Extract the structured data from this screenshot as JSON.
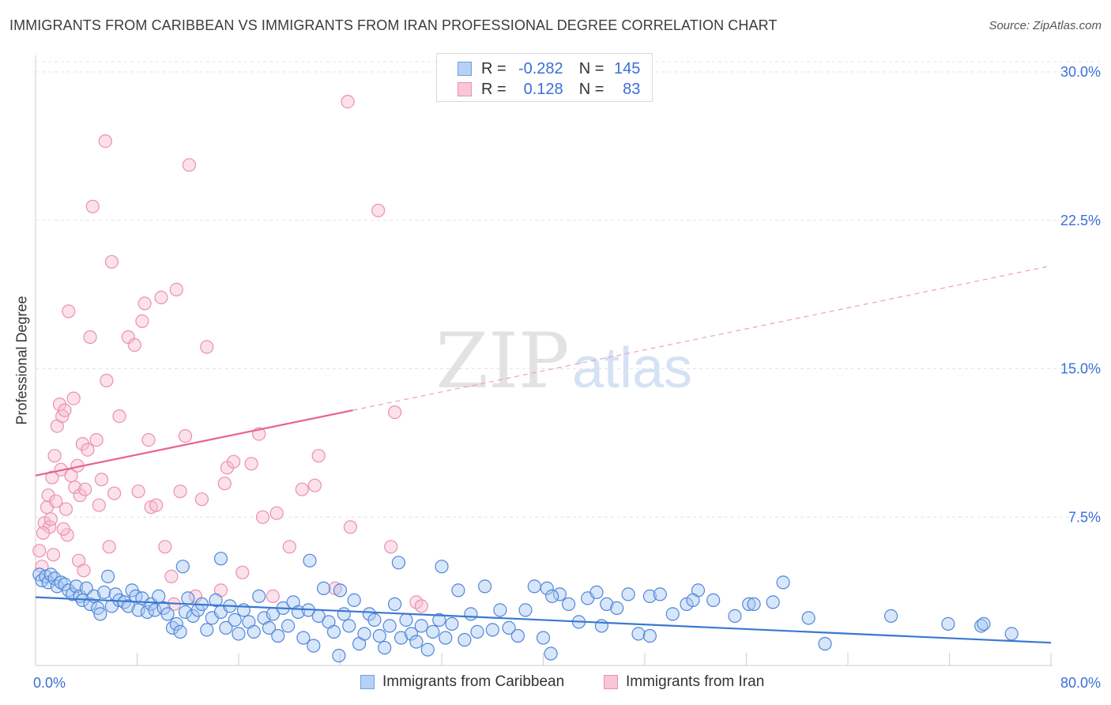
{
  "header": {
    "title": "IMMIGRANTS FROM CARIBBEAN VS IMMIGRANTS FROM IRAN PROFESSIONAL DEGREE CORRELATION CHART",
    "source": "Source: ZipAtlas.com"
  },
  "watermark": {
    "zip": "ZIP",
    "atlas": "atlas"
  },
  "legend": {
    "rows": [
      {
        "r_label": "R =",
        "r_value": "-0.282",
        "n_label": "N =",
        "n_value": "145",
        "swatch_fill": "#b7d0f5",
        "swatch_stroke": "#6f9ee6"
      },
      {
        "r_label": "R =",
        "r_value": "0.128",
        "n_label": "N =",
        "n_value": "83",
        "swatch_fill": "#f9c6d6",
        "swatch_stroke": "#ec8fae"
      }
    ]
  },
  "chart_data": {
    "type": "scatter",
    "title": "IMMIGRANTS FROM CARIBBEAN VS IMMIGRANTS FROM IRAN PROFESSIONAL DEGREE CORRELATION CHART",
    "xlabel": "",
    "ylabel": "Professional Degree",
    "xlim": [
      0,
      80
    ],
    "ylim": [
      0,
      31
    ],
    "x_tick_labels": [
      "0.0%",
      "80.0%"
    ],
    "y_ticks": [
      7.5,
      15.0,
      22.5,
      30.0
    ],
    "y_tick_labels": [
      "7.5%",
      "15.0%",
      "22.5%",
      "30.0%"
    ],
    "grid": "horizontal dashed",
    "legend_position": "top-center and bottom",
    "colors": {
      "caribbean": "#3a78d0",
      "iran": "#e8628f",
      "tick_label": "#3a6fd8"
    },
    "series": [
      {
        "name": "Immigrants from Caribbean",
        "r": -0.282,
        "n": 145,
        "trend": {
          "x": [
            0,
            80
          ],
          "y": [
            3.45,
            1.15
          ]
        },
        "points": [
          [
            0.3,
            4.6
          ],
          [
            0.5,
            4.3
          ],
          [
            0.8,
            4.5
          ],
          [
            1.0,
            4.2
          ],
          [
            1.2,
            4.6
          ],
          [
            1.5,
            4.4
          ],
          [
            1.7,
            4.0
          ],
          [
            2.0,
            4.2
          ],
          [
            2.3,
            4.1
          ],
          [
            2.6,
            3.8
          ],
          [
            2.9,
            3.6
          ],
          [
            3.2,
            4.0
          ],
          [
            3.5,
            3.5
          ],
          [
            3.7,
            3.3
          ],
          [
            4.0,
            3.9
          ],
          [
            4.3,
            3.1
          ],
          [
            4.6,
            3.5
          ],
          [
            4.9,
            2.9
          ],
          [
            5.1,
            2.6
          ],
          [
            5.4,
            3.7
          ],
          [
            5.7,
            4.5
          ],
          [
            6.0,
            3.0
          ],
          [
            6.3,
            3.6
          ],
          [
            6.6,
            3.3
          ],
          [
            7.0,
            3.2
          ],
          [
            7.3,
            3.0
          ],
          [
            7.6,
            3.8
          ],
          [
            7.9,
            3.5
          ],
          [
            8.1,
            2.8
          ],
          [
            8.4,
            3.4
          ],
          [
            8.8,
            2.7
          ],
          [
            9.1,
            3.1
          ],
          [
            9.4,
            2.8
          ],
          [
            9.7,
            3.5
          ],
          [
            10.1,
            2.9
          ],
          [
            10.4,
            2.6
          ],
          [
            10.8,
            1.9
          ],
          [
            11.1,
            2.1
          ],
          [
            11.4,
            1.7
          ],
          [
            11.8,
            2.7
          ],
          [
            12.0,
            3.4
          ],
          [
            12.4,
            2.5
          ],
          [
            12.8,
            2.8
          ],
          [
            13.1,
            3.1
          ],
          [
            13.5,
            1.8
          ],
          [
            13.9,
            2.4
          ],
          [
            14.2,
            3.3
          ],
          [
            14.6,
            2.7
          ],
          [
            15.0,
            1.9
          ],
          [
            15.3,
            3.0
          ],
          [
            15.7,
            2.3
          ],
          [
            16.0,
            1.6
          ],
          [
            16.4,
            2.8
          ],
          [
            16.8,
            2.2
          ],
          [
            17.2,
            1.7
          ],
          [
            17.6,
            3.5
          ],
          [
            18.0,
            2.4
          ],
          [
            18.4,
            1.9
          ],
          [
            18.7,
            2.6
          ],
          [
            19.1,
            1.5
          ],
          [
            19.5,
            2.9
          ],
          [
            19.9,
            2.0
          ],
          [
            20.3,
            3.2
          ],
          [
            20.7,
            2.7
          ],
          [
            21.1,
            1.4
          ],
          [
            21.5,
            2.8
          ],
          [
            21.9,
            1.0
          ],
          [
            22.3,
            2.5
          ],
          [
            22.7,
            3.9
          ],
          [
            23.1,
            2.2
          ],
          [
            23.5,
            1.7
          ],
          [
            23.9,
            0.5
          ],
          [
            24.3,
            2.6
          ],
          [
            24.7,
            2.0
          ],
          [
            25.1,
            3.3
          ],
          [
            25.5,
            1.1
          ],
          [
            25.9,
            1.6
          ],
          [
            26.3,
            2.6
          ],
          [
            26.7,
            2.3
          ],
          [
            27.1,
            1.5
          ],
          [
            27.5,
            0.9
          ],
          [
            27.9,
            2.0
          ],
          [
            28.3,
            3.1
          ],
          [
            28.8,
            1.4
          ],
          [
            29.2,
            2.3
          ],
          [
            29.6,
            1.6
          ],
          [
            30.0,
            1.2
          ],
          [
            30.4,
            2.0
          ],
          [
            30.9,
            0.8
          ],
          [
            31.3,
            1.7
          ],
          [
            31.8,
            2.3
          ],
          [
            32.3,
            1.4
          ],
          [
            32.8,
            2.1
          ],
          [
            33.3,
            3.8
          ],
          [
            33.8,
            1.3
          ],
          [
            34.3,
            2.6
          ],
          [
            34.8,
            1.7
          ],
          [
            35.4,
            4.0
          ],
          [
            36.0,
            1.8
          ],
          [
            36.6,
            2.8
          ],
          [
            37.3,
            1.9
          ],
          [
            38.0,
            1.5
          ],
          [
            38.6,
            2.8
          ],
          [
            39.3,
            4.0
          ],
          [
            40.0,
            1.4
          ],
          [
            40.6,
            0.6
          ],
          [
            41.3,
            3.6
          ],
          [
            42.0,
            3.1
          ],
          [
            42.8,
            2.2
          ],
          [
            43.5,
            3.4
          ],
          [
            44.2,
            3.7
          ],
          [
            45.0,
            3.1
          ],
          [
            45.8,
            2.9
          ],
          [
            46.7,
            3.6
          ],
          [
            47.5,
            1.6
          ],
          [
            48.4,
            3.5
          ],
          [
            49.2,
            3.6
          ],
          [
            50.2,
            2.6
          ],
          [
            51.3,
            3.1
          ],
          [
            52.2,
            3.8
          ],
          [
            53.4,
            3.3
          ],
          [
            55.1,
            2.5
          ],
          [
            56.2,
            3.1
          ],
          [
            58.1,
            3.2
          ],
          [
            58.9,
            4.2
          ],
          [
            60.9,
            2.4
          ],
          [
            62.2,
            1.1
          ],
          [
            71.9,
            2.1
          ],
          [
            67.4,
            2.5
          ],
          [
            76.9,
            1.6
          ],
          [
            74.5,
            2.0
          ],
          [
            74.7,
            2.1
          ],
          [
            11.6,
            5.0
          ],
          [
            14.6,
            5.4
          ],
          [
            21.6,
            5.3
          ],
          [
            24.0,
            3.8
          ],
          [
            28.6,
            5.2
          ],
          [
            32.0,
            5.0
          ],
          [
            40.3,
            3.9
          ],
          [
            40.7,
            3.5
          ],
          [
            44.6,
            2.0
          ],
          [
            48.4,
            1.5
          ],
          [
            51.8,
            3.3
          ],
          [
            56.6,
            3.1
          ]
        ]
      },
      {
        "name": "Immigrants from Iran",
        "r": 0.128,
        "n": 83,
        "trend_solid": {
          "x": [
            0,
            25
          ],
          "y": [
            9.6,
            12.9
          ]
        },
        "trend_dashed": {
          "x": [
            25,
            80
          ],
          "y": [
            12.9,
            20.2
          ]
        },
        "points": [
          [
            0.3,
            5.8
          ],
          [
            0.5,
            5.0
          ],
          [
            0.7,
            7.2
          ],
          [
            0.9,
            8.0
          ],
          [
            1.0,
            8.6
          ],
          [
            1.1,
            7.0
          ],
          [
            1.3,
            9.5
          ],
          [
            1.5,
            10.6
          ],
          [
            1.6,
            8.3
          ],
          [
            1.7,
            12.1
          ],
          [
            1.9,
            13.2
          ],
          [
            2.0,
            9.9
          ],
          [
            2.1,
            12.6
          ],
          [
            2.3,
            12.9
          ],
          [
            2.5,
            6.6
          ],
          [
            2.6,
            17.9
          ],
          [
            2.8,
            9.6
          ],
          [
            3.0,
            13.5
          ],
          [
            3.1,
            9.0
          ],
          [
            3.3,
            10.1
          ],
          [
            3.5,
            8.6
          ],
          [
            3.7,
            11.2
          ],
          [
            3.9,
            8.9
          ],
          [
            4.1,
            10.9
          ],
          [
            4.3,
            16.6
          ],
          [
            4.5,
            23.2
          ],
          [
            4.8,
            11.4
          ],
          [
            5.0,
            8.1
          ],
          [
            5.2,
            9.4
          ],
          [
            5.5,
            26.5
          ],
          [
            5.6,
            14.4
          ],
          [
            5.8,
            6.0
          ],
          [
            6.0,
            20.4
          ],
          [
            6.2,
            8.7
          ],
          [
            6.6,
            12.6
          ],
          [
            7.3,
            16.6
          ],
          [
            7.8,
            16.2
          ],
          [
            8.1,
            8.8
          ],
          [
            8.4,
            17.4
          ],
          [
            8.6,
            18.3
          ],
          [
            8.9,
            11.4
          ],
          [
            9.1,
            8.0
          ],
          [
            9.5,
            8.1
          ],
          [
            9.9,
            18.6
          ],
          [
            10.2,
            6.0
          ],
          [
            10.7,
            4.5
          ],
          [
            10.9,
            3.1
          ],
          [
            11.1,
            19.0
          ],
          [
            11.4,
            8.8
          ],
          [
            11.8,
            11.6
          ],
          [
            12.1,
            25.3
          ],
          [
            12.6,
            3.5
          ],
          [
            13.1,
            8.4
          ],
          [
            13.5,
            16.1
          ],
          [
            14.6,
            3.8
          ],
          [
            14.9,
            9.2
          ],
          [
            15.1,
            10.0
          ],
          [
            15.6,
            10.3
          ],
          [
            16.3,
            4.7
          ],
          [
            17.0,
            10.2
          ],
          [
            17.6,
            11.7
          ],
          [
            17.9,
            7.5
          ],
          [
            18.7,
            3.5
          ],
          [
            19.0,
            7.7
          ],
          [
            20.0,
            6.0
          ],
          [
            21.0,
            8.9
          ],
          [
            22.0,
            9.1
          ],
          [
            22.3,
            10.6
          ],
          [
            23.6,
            3.9
          ],
          [
            24.6,
            28.5
          ],
          [
            24.8,
            7.0
          ],
          [
            27.0,
            23.0
          ],
          [
            28.0,
            6.0
          ],
          [
            28.3,
            12.8
          ],
          [
            30.0,
            3.2
          ],
          [
            30.4,
            3.0
          ],
          [
            0.6,
            6.7
          ],
          [
            1.2,
            7.4
          ],
          [
            1.4,
            5.6
          ],
          [
            2.2,
            6.9
          ],
          [
            2.4,
            7.9
          ],
          [
            3.4,
            5.3
          ],
          [
            3.8,
            4.8
          ]
        ]
      }
    ]
  },
  "bottom_legend": [
    {
      "label": "Immigrants from Caribbean",
      "swatch_fill": "#b7d0f5",
      "swatch_stroke": "#6f9ee6"
    },
    {
      "label": "Immigrants from Iran",
      "swatch_fill": "#f9c6d6",
      "swatch_stroke": "#ec8fae"
    }
  ]
}
